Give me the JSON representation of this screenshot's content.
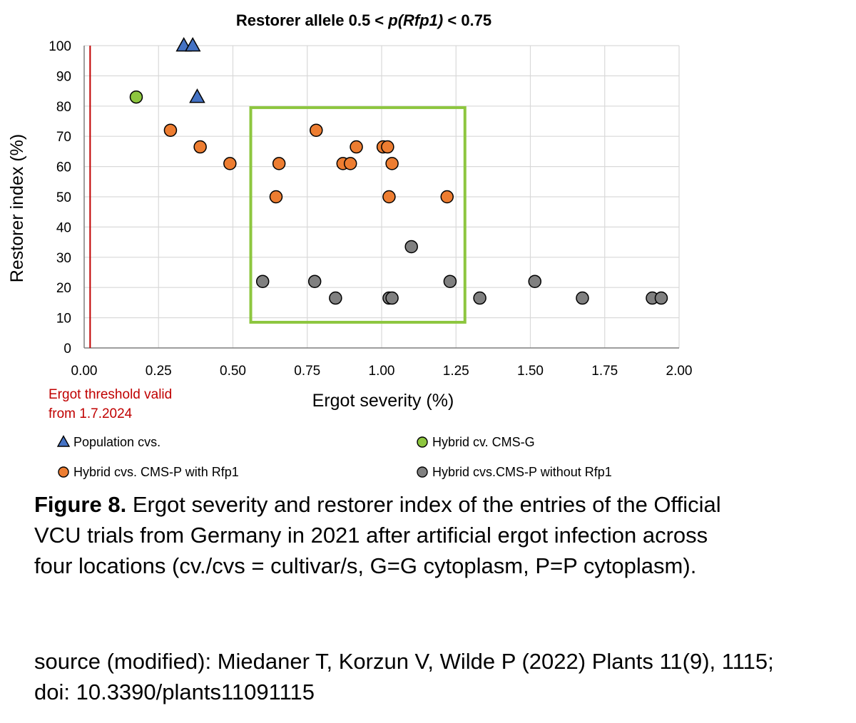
{
  "chart_data": {
    "type": "scatter",
    "title_prefix": "Restorer allele 0.5 < ",
    "title_italic": "p(Rfp1)",
    "title_suffix": " < 0.75",
    "xlabel": "Ergot severity (%)",
    "ylabel": "Restorer index (%)",
    "xlim": [
      0,
      2
    ],
    "ylim": [
      0,
      100
    ],
    "xticks": [
      "0.00",
      "0.25",
      "0.50",
      "0.75",
      "1.00",
      "1.25",
      "1.50",
      "1.75",
      "2.00"
    ],
    "yticks": [
      "0",
      "10",
      "20",
      "30",
      "40",
      "50",
      "60",
      "70",
      "80",
      "90",
      "100"
    ],
    "threshold": {
      "x": 0.02,
      "label_line1": "Ergot threshold valid",
      "label_line2": "from 1.7.2024",
      "color": "#c00000"
    },
    "highlight_box": {
      "x0": 0.56,
      "x1": 1.28,
      "y0": 8.5,
      "y1": 79.5,
      "color": "#8dc63f"
    },
    "series": [
      {
        "name": "Population cvs.",
        "marker": "triangle",
        "color": "#4472c4",
        "points": [
          [
            0.335,
            100
          ],
          [
            0.365,
            100
          ],
          [
            0.38,
            83
          ]
        ]
      },
      {
        "name": "Hybrid cv. CMS-G",
        "marker": "circle",
        "color": "#8dc63f",
        "points": [
          [
            0.175,
            83
          ]
        ]
      },
      {
        "name": "Hybrid cvs. CMS-P with Rfp1",
        "marker": "circle",
        "color": "#ed7d31",
        "points": [
          [
            0.29,
            72
          ],
          [
            0.39,
            66.5
          ],
          [
            0.49,
            61
          ],
          [
            0.645,
            50
          ],
          [
            0.655,
            61
          ],
          [
            0.78,
            72
          ],
          [
            0.87,
            61
          ],
          [
            0.895,
            61
          ],
          [
            0.915,
            66.5
          ],
          [
            1.005,
            66.5
          ],
          [
            1.02,
            66.5
          ],
          [
            1.025,
            50
          ],
          [
            1.035,
            61
          ],
          [
            1.22,
            50
          ]
        ]
      },
      {
        "name": "Hybrid cvs.CMS-P without Rfp1",
        "marker": "circle",
        "color": "#808080",
        "points": [
          [
            0.6,
            22
          ],
          [
            0.775,
            22
          ],
          [
            0.845,
            16.5
          ],
          [
            1.025,
            16.5
          ],
          [
            1.035,
            16.5
          ],
          [
            1.1,
            33.5
          ],
          [
            1.23,
            22
          ],
          [
            1.33,
            16.5
          ],
          [
            1.515,
            22
          ],
          [
            1.675,
            16.5
          ],
          [
            1.91,
            16.5
          ],
          [
            1.94,
            16.5
          ]
        ]
      }
    ]
  },
  "caption": {
    "label": "Figure 8.",
    "text": " Ergot severity and restorer index of the entries of the Official VCU trials from Germany in 2021 after artificial ergot infection across four locations (cv./cvs = cultivar/s, G=G cytoplasm, P=P cytoplasm)."
  },
  "source": {
    "line1": "source (modified): Miedaner T, Korzun V, Wilde P (2022) Plants 11(9), 1115;",
    "line2": "doi: 10.3390/plants11091115"
  }
}
